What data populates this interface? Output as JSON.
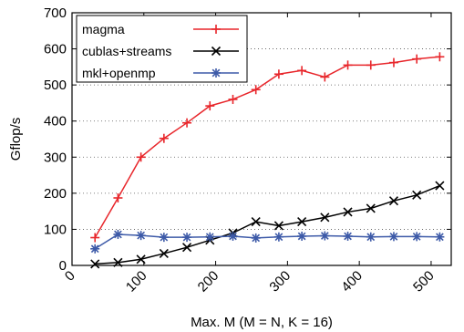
{
  "chart_data": {
    "type": "line",
    "title": "",
    "xlabel": "Max. M (M = N, K = 16)",
    "ylabel": "Gflop/s",
    "xlim": [
      0,
      528
    ],
    "ylim": [
      0,
      700
    ],
    "xticks": [
      0,
      100,
      200,
      300,
      400,
      500
    ],
    "yticks": [
      0,
      100,
      200,
      300,
      400,
      500,
      600,
      700
    ],
    "grid": "horizontal-dotted",
    "legend_position": "top-left",
    "x": [
      32,
      64,
      96,
      128,
      160,
      192,
      224,
      256,
      288,
      320,
      352,
      384,
      416,
      448,
      480,
      512
    ],
    "series": [
      {
        "name": "magma",
        "color": "#e8262b",
        "marker": "plus",
        "values": [
          77,
          187,
          300,
          352,
          395,
          442,
          460,
          487,
          530,
          540,
          522,
          555,
          555,
          562,
          572,
          578
        ]
      },
      {
        "name": "cublas+streams",
        "color": "#000000",
        "marker": "cross",
        "values": [
          4,
          8,
          17,
          33,
          50,
          70,
          90,
          121,
          110,
          121,
          133,
          148,
          158,
          179,
          195,
          221
        ]
      },
      {
        "name": "mkl+openmp",
        "color": "#3d5aa8",
        "marker": "star",
        "values": [
          46,
          86,
          83,
          78,
          78,
          79,
          81,
          76,
          79,
          81,
          82,
          81,
          79,
          80,
          80,
          79
        ]
      }
    ]
  }
}
